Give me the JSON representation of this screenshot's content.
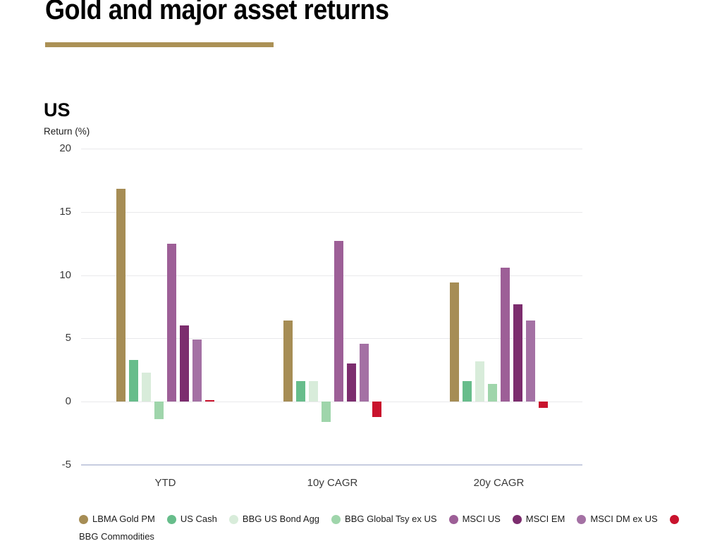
{
  "page": {
    "title": "Gold and major asset returns"
  },
  "accent": {
    "divider_color": "#ab9155"
  },
  "section": {
    "heading": "US",
    "axis_label": "Return (%)"
  },
  "chart_data": {
    "type": "bar",
    "title": "US",
    "ylabel": "Return (%)",
    "categories": [
      "YTD",
      "10y CAGR",
      "20y CAGR"
    ],
    "series": [
      {
        "name": "LBMA Gold PM",
        "color": "#a68d55",
        "values": [
          16.8,
          6.4,
          9.4
        ]
      },
      {
        "name": "US Cash",
        "color": "#67bd8b",
        "values": [
          3.3,
          1.6,
          1.6
        ]
      },
      {
        "name": "BBG US Bond Agg",
        "color": "#d8ecda",
        "values": [
          2.3,
          1.6,
          3.2
        ]
      },
      {
        "name": "BBG Global Tsy ex US",
        "color": "#9fd5ab",
        "values": [
          -1.4,
          -1.6,
          1.4
        ]
      },
      {
        "name": "MSCI US",
        "color": "#9d5f97",
        "values": [
          12.5,
          12.7,
          10.6
        ]
      },
      {
        "name": "MSCI EM",
        "color": "#7c2d6e",
        "values": [
          6.0,
          3.0,
          7.7
        ]
      },
      {
        "name": "MSCI DM ex US",
        "color": "#a471a4",
        "values": [
          4.9,
          4.6,
          6.4
        ]
      },
      {
        "name": "BBG Commodities",
        "color": "#c9132d",
        "values": [
          0.1,
          -1.2,
          -0.5
        ]
      }
    ],
    "ylim": [
      -5,
      20
    ],
    "yticks": [
      20,
      15,
      10,
      5,
      0,
      -5
    ],
    "grid": true,
    "legend_position": "bottom",
    "legend_wrap_last_label": true
  }
}
